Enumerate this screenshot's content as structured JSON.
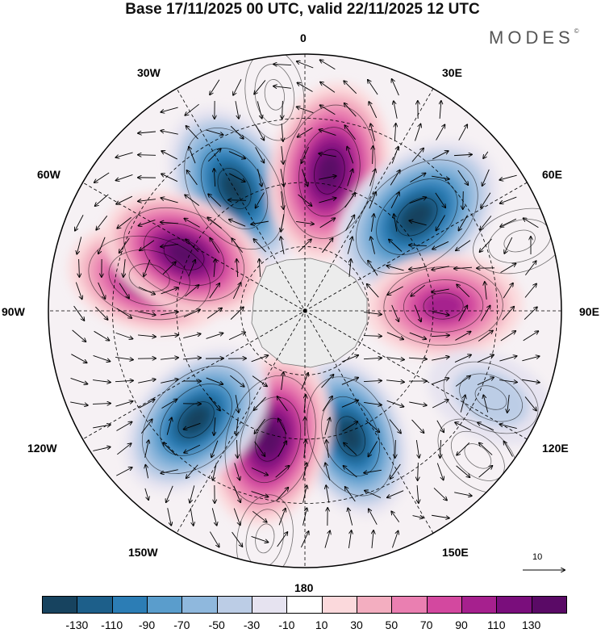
{
  "title": "Base 17/11/2025 00 UTC, valid 22/11/2025 12 UTC",
  "brand": "MODES",
  "brand_mark": "©",
  "longitudes": {
    "top": "0",
    "top_right": "30E",
    "right_upper": "60E",
    "right": "90E",
    "right_lower": "120E",
    "bottom_right": "150E",
    "bottom": "180",
    "bottom_left": "150W",
    "left_lower": "120W",
    "left": "90W",
    "left_upper": "60W",
    "top_left": "30W"
  },
  "reference_vector": "10",
  "colorbar": {
    "labels": [
      "-130",
      "-110",
      "-90",
      "-70",
      "-50",
      "-30",
      "-10",
      "10",
      "30",
      "50",
      "70",
      "90",
      "110",
      "130"
    ],
    "colors": [
      "#17435f",
      "#1d5f8a",
      "#2c7db5",
      "#5a9dcc",
      "#8fb8dd",
      "#bccde6",
      "#e6e3f0",
      "#ffffff",
      "#fbd9dc",
      "#f3aec0",
      "#ea7fb1",
      "#d3489f",
      "#a6208e",
      "#7a0e7c",
      "#5a0a66"
    ]
  },
  "anomalies": [
    {
      "sign": "neg",
      "level": 15,
      "lon": -30,
      "colat": 0.55
    },
    {
      "sign": "pos",
      "level": 16,
      "lon": 10,
      "colat": 0.55
    },
    {
      "sign": "neg",
      "level": 17,
      "lon": 50,
      "colat": 0.57
    },
    {
      "sign": "pos",
      "level": 12,
      "lon": 88,
      "colat": 0.54
    },
    {
      "sign": "neg",
      "level": 7,
      "lon": 115,
      "colat": 0.8
    },
    {
      "sign": "neg",
      "level": 13,
      "lon": 160,
      "colat": 0.52
    },
    {
      "sign": "pos",
      "level": 15,
      "lon": -165,
      "colat": 0.52
    },
    {
      "sign": "neg",
      "level": 14,
      "lon": -135,
      "colat": 0.6
    },
    {
      "sign": "pos",
      "level": 13,
      "lon": -78,
      "colat": 0.62
    },
    {
      "sign": "pos",
      "level": 14,
      "lon": -65,
      "colat": 0.52
    },
    {
      "sign": "pos",
      "level": 6,
      "lon": 72,
      "colat": 0.88
    },
    {
      "sign": "pos",
      "level": 5,
      "lon": -8,
      "colat": 0.85
    },
    {
      "sign": "pos",
      "level": 5,
      "lon": 130,
      "colat": 0.88
    },
    {
      "sign": "pos",
      "level": 4,
      "lon": -170,
      "colat": 0.9
    }
  ]
}
